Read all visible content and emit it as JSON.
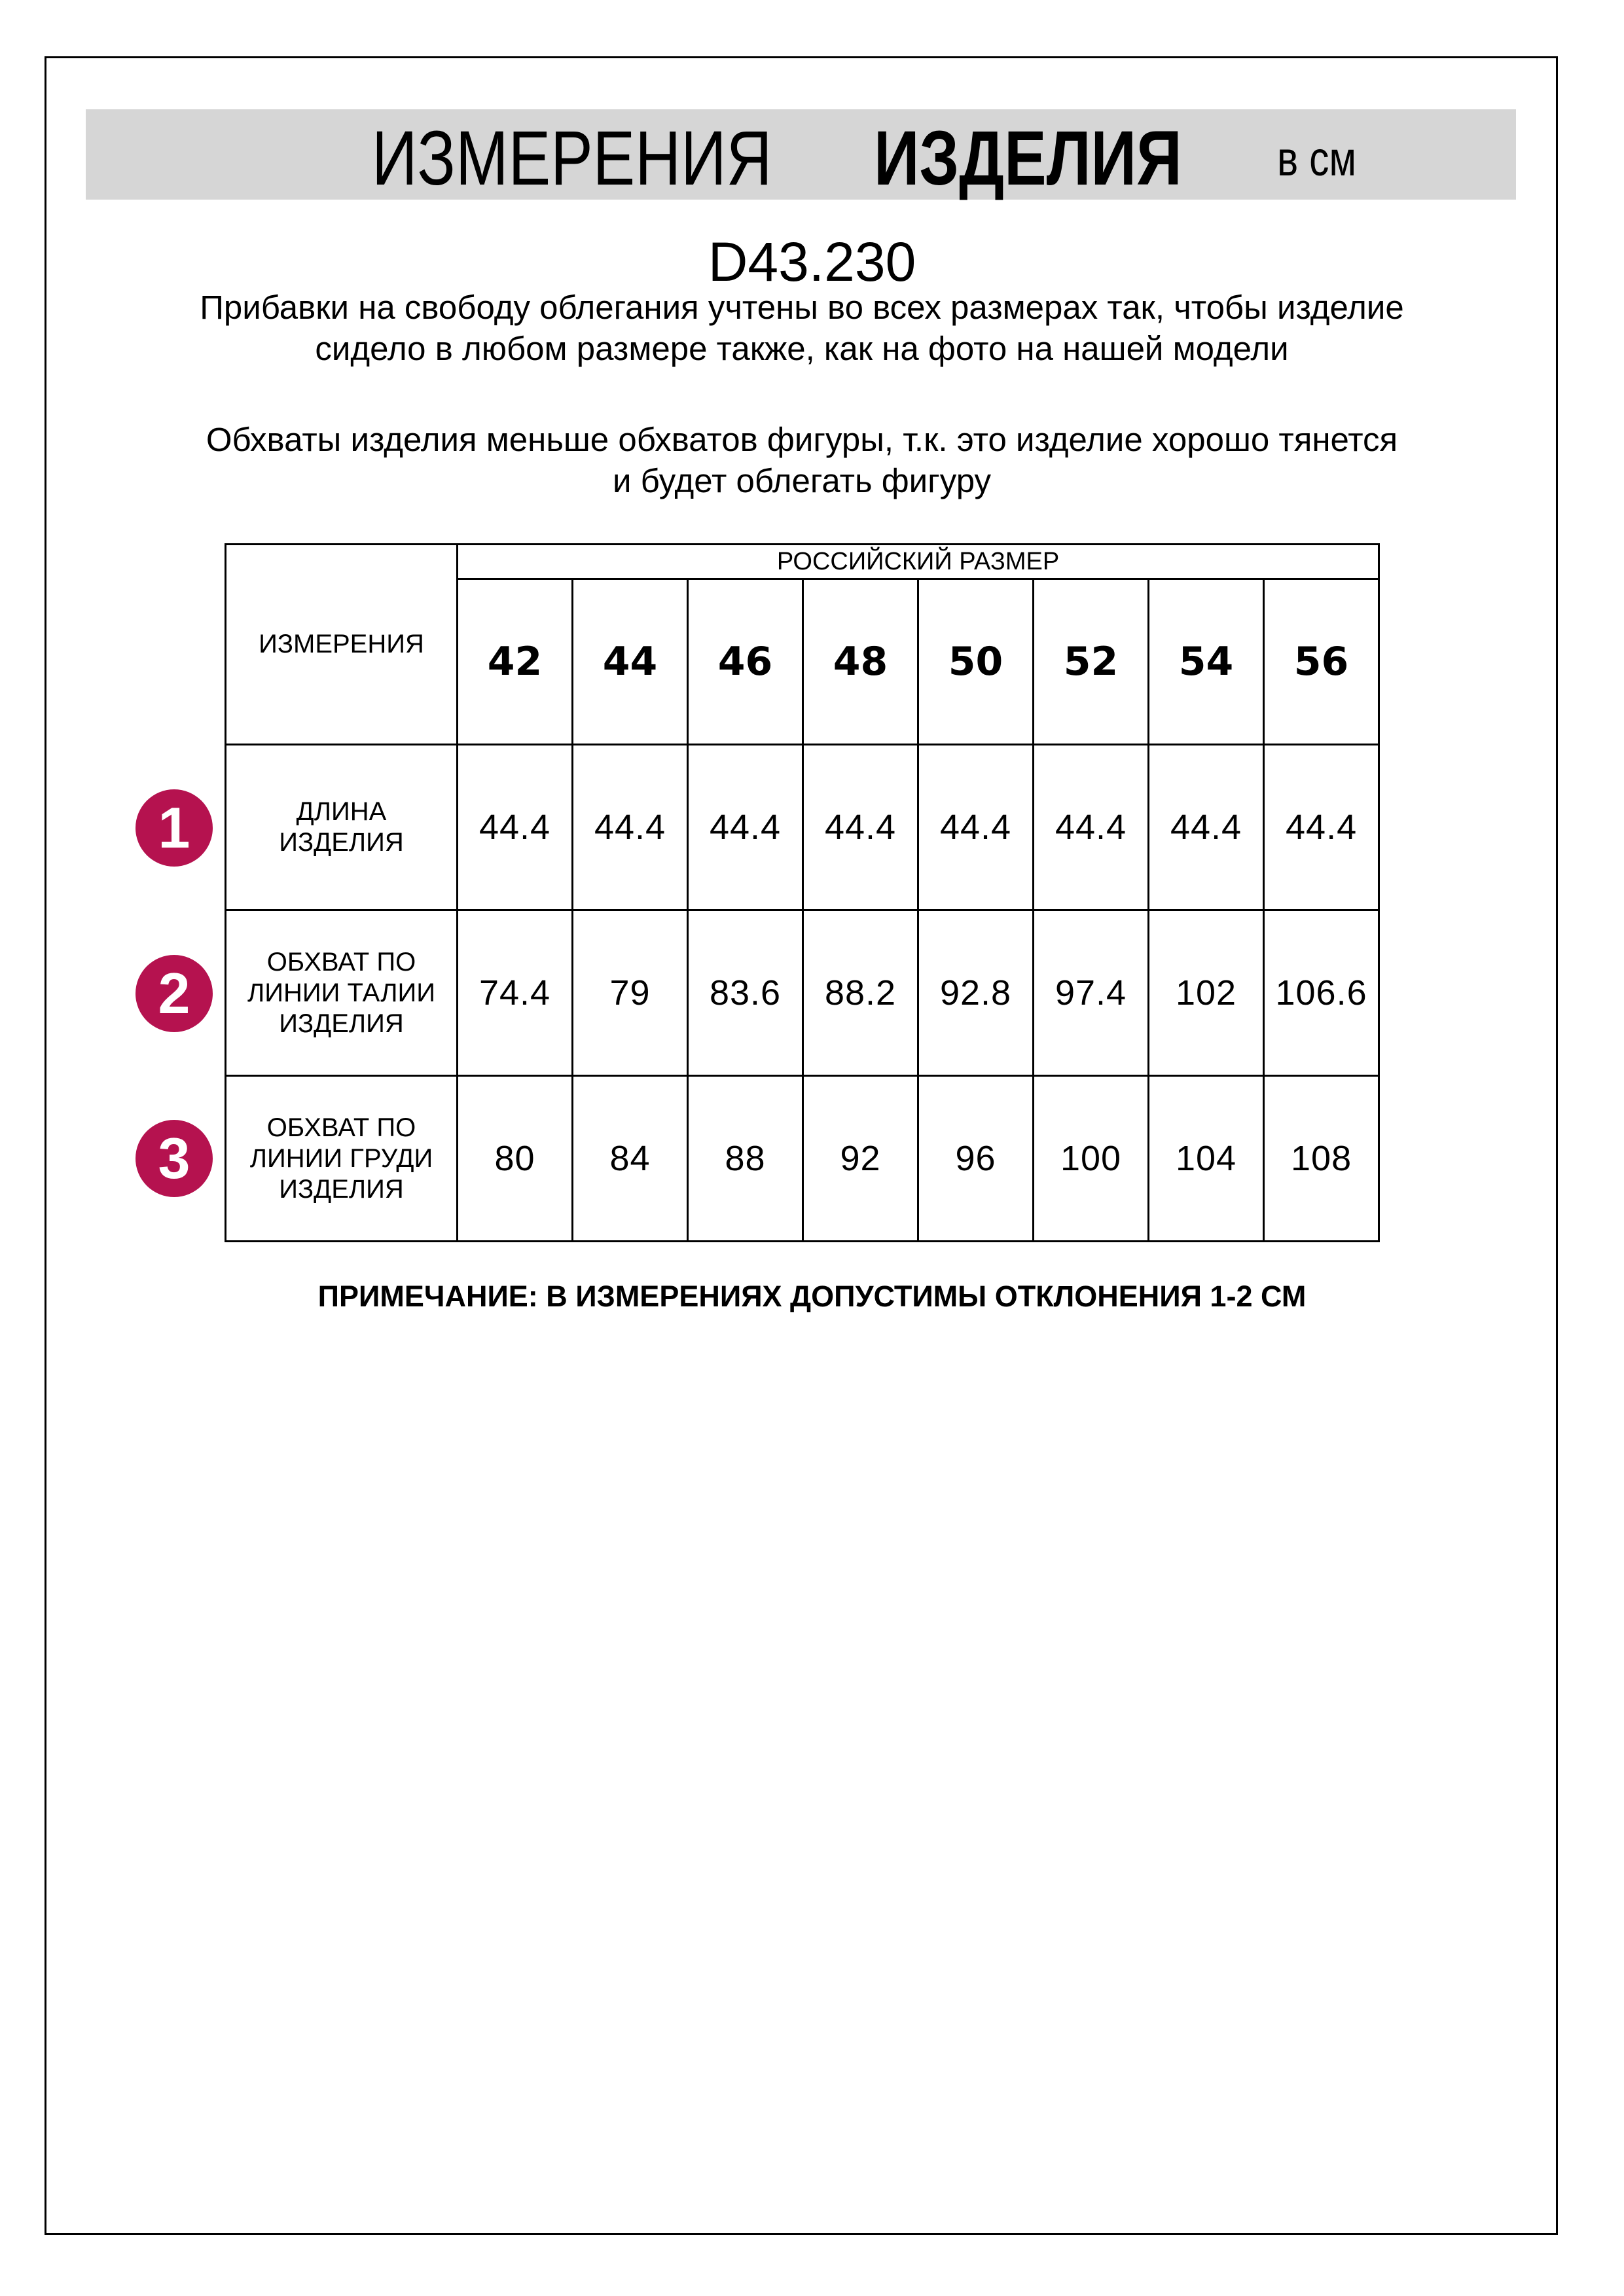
{
  "header": {
    "title_regular": "ИЗМЕРЕНИЯ",
    "title_bold": "ИЗДЕЛИЯ",
    "unit": "в см",
    "band_color": "#d6d6d6"
  },
  "product_code": "D43.230",
  "notes_top": [
    "Прибавки на свободу облегания учтены во всех размерах так, чтобы изделие сидело в любом размере также, как на фото на нашей модели",
    "Обхваты изделия меньше обхватов фигуры, т.к. это изделие хорошо тянется и будет облегать фигуру"
  ],
  "table": {
    "measurements_header": "ИЗМЕРЕНИЯ",
    "size_group_header": "РОССИЙСКИЙ РАЗМЕР",
    "sizes": [
      "42",
      "44",
      "46",
      "48",
      "50",
      "52",
      "54",
      "56"
    ],
    "rows": [
      {
        "number": "1",
        "label": "ДЛИНА ИЗДЕЛИЯ",
        "values": [
          "44.4",
          "44.4",
          "44.4",
          "44.4",
          "44.4",
          "44.4",
          "44.4",
          "44.4"
        ]
      },
      {
        "number": "2",
        "label": "ОБХВАТ ПО ЛИНИИ ТАЛИИ ИЗДЕЛИЯ",
        "values": [
          "74.4",
          "79",
          "83.6",
          "88.2",
          "92.8",
          "97.4",
          "102",
          "106.6"
        ]
      },
      {
        "number": "3",
        "label": "ОБХВАТ ПО ЛИНИИ ГРУДИ ИЗДЕЛИЯ",
        "values": [
          "80",
          "84",
          "88",
          "92",
          "96",
          "100",
          "104",
          "108"
        ]
      }
    ],
    "badge_color": "#b5124f"
  },
  "footnote": "ПРИМЕЧАНИЕ: В ИЗМЕРЕНИЯХ ДОПУСТИМЫ ОТКЛОНЕНИЯ 1-2 СМ"
}
